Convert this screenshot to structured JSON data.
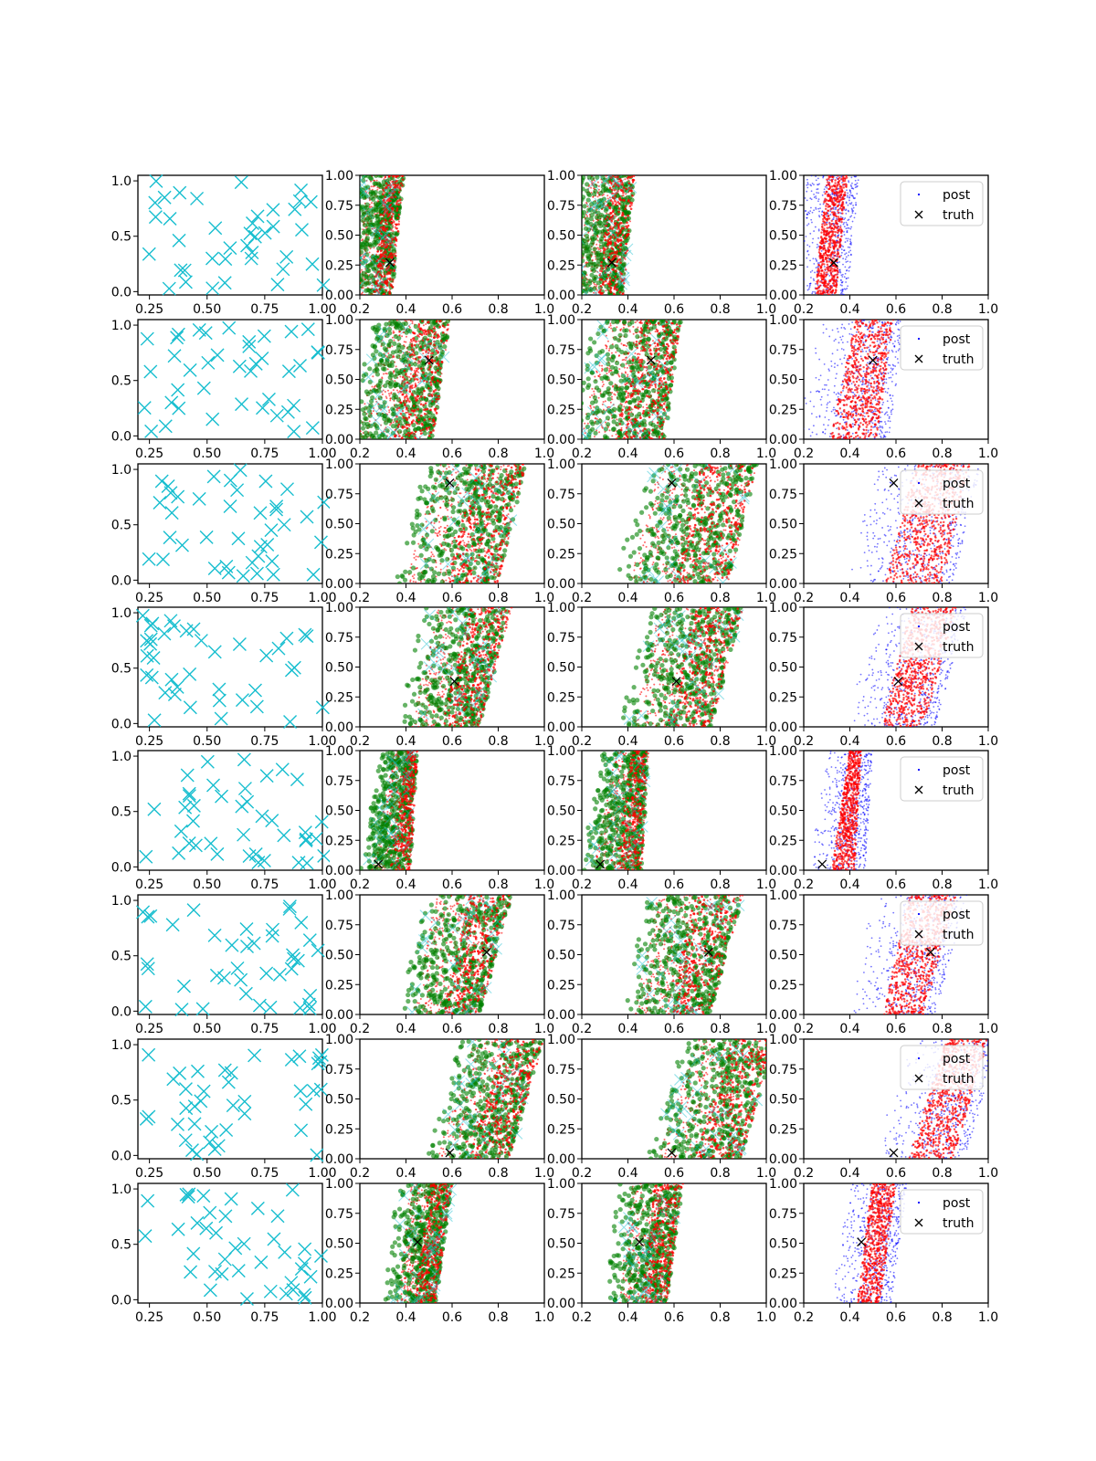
{
  "chart_data": {
    "type": "scatter",
    "grid": false,
    "layout": "8 rows x 4 columns of scatter panels",
    "legend": {
      "placement": "upper-right of fourth column panels",
      "entries": [
        "post",
        "truth"
      ]
    },
    "colors": {
      "samples_cyan": "#17becf",
      "green_points": "#008000",
      "red_points": "#ff0000",
      "blue_points": "#0000ff",
      "truth_marker": "#000000",
      "axes": "#000000"
    },
    "column_axes": {
      "col1": {
        "xlim": [
          0.2,
          1.0
        ],
        "ylim": [
          -0.03,
          1.05
        ],
        "xticks": [
          "0.25",
          "0.50",
          "0.75",
          "1.00"
        ],
        "yticks": [
          "0.0",
          "0.5",
          "1.0"
        ]
      },
      "col2to4": {
        "xlim": [
          0.2,
          1.0
        ],
        "ylim": [
          0.0,
          1.0
        ],
        "xticks": [
          "0.2",
          "0.4",
          "0.6",
          "0.8",
          "1.0"
        ],
        "yticks": [
          "0.00",
          "0.25",
          "0.50",
          "0.75",
          "1.00"
        ]
      }
    },
    "rows": [
      {
        "truth": [
          0.33,
          0.27
        ],
        "band_low": [
          0.2,
          0.25
        ],
        "band_high": [
          0.34,
          0.39
        ],
        "legend_entries": [
          "post",
          "truth"
        ]
      },
      {
        "truth": [
          0.5,
          0.66
        ],
        "band_low": [
          0.2,
          0.34
        ],
        "band_high": [
          0.52,
          0.59
        ],
        "legend_entries": [
          "post",
          "truth"
        ]
      },
      {
        "truth": [
          0.59,
          0.84
        ],
        "band_low": [
          0.42,
          0.56
        ],
        "band_high": [
          0.8,
          0.92
        ],
        "legend_entries": [
          "post",
          "truth"
        ]
      },
      {
        "truth": [
          0.61,
          0.38
        ],
        "band_low": [
          0.44,
          0.56
        ],
        "band_high": [
          0.72,
          0.86
        ],
        "legend_entries": [
          "post",
          "truth"
        ]
      },
      {
        "truth": [
          0.28,
          0.05
        ],
        "band_low": [
          0.27,
          0.37
        ],
        "band_high": [
          0.42,
          0.45
        ],
        "legend_entries": [
          "post",
          "truth"
        ]
      },
      {
        "truth": [
          0.75,
          0.52
        ],
        "band_low": [
          0.45,
          0.55
        ],
        "band_high": [
          0.72,
          0.86
        ],
        "legend_entries": [
          "post",
          "truth"
        ]
      },
      {
        "truth": [
          0.59,
          0.05
        ],
        "band_low": [
          0.55,
          0.72
        ],
        "band_high": [
          0.85,
          1.0
        ],
        "legend_entries": [
          "post",
          "truth"
        ]
      },
      {
        "truth": [
          0.45,
          0.51
        ],
        "band_low": [
          0.38,
          0.44
        ],
        "band_high": [
          0.53,
          0.6
        ],
        "legend_entries": [
          "post",
          "truth"
        ]
      }
    ]
  }
}
